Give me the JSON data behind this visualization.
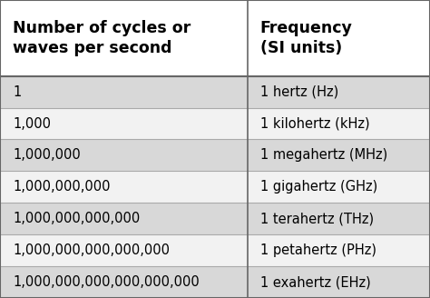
{
  "col1_header": "Number of cycles or\nwaves per second",
  "col2_header": "Frequency\n(SI units)",
  "rows": [
    [
      "1",
      "1 hertz (Hz)"
    ],
    [
      "1,000",
      "1 kilohertz (kHz)"
    ],
    [
      "1,000,000",
      "1 megahertz (MHz)"
    ],
    [
      "1,000,000,000",
      "1 gigahertz (GHz)"
    ],
    [
      "1,000,000,000,000",
      "1 terahertz (THz)"
    ],
    [
      "1,000,000,000,000,000",
      "1 petahertz (PHz)"
    ],
    [
      "1,000,000,000,000,000,000",
      "1 exahertz (EHz)"
    ]
  ],
  "header_bg": "#ffffff",
  "header_text_color": "#000000",
  "row_bg_odd": "#d8d8d8",
  "row_bg_even": "#f2f2f2",
  "divider_color": "#aaaaaa",
  "text_color": "#000000",
  "col_split": 0.575,
  "header_fontsize": 12.5,
  "row_fontsize": 10.5,
  "fig_width": 4.74,
  "fig_height": 3.28,
  "dpi": 100
}
